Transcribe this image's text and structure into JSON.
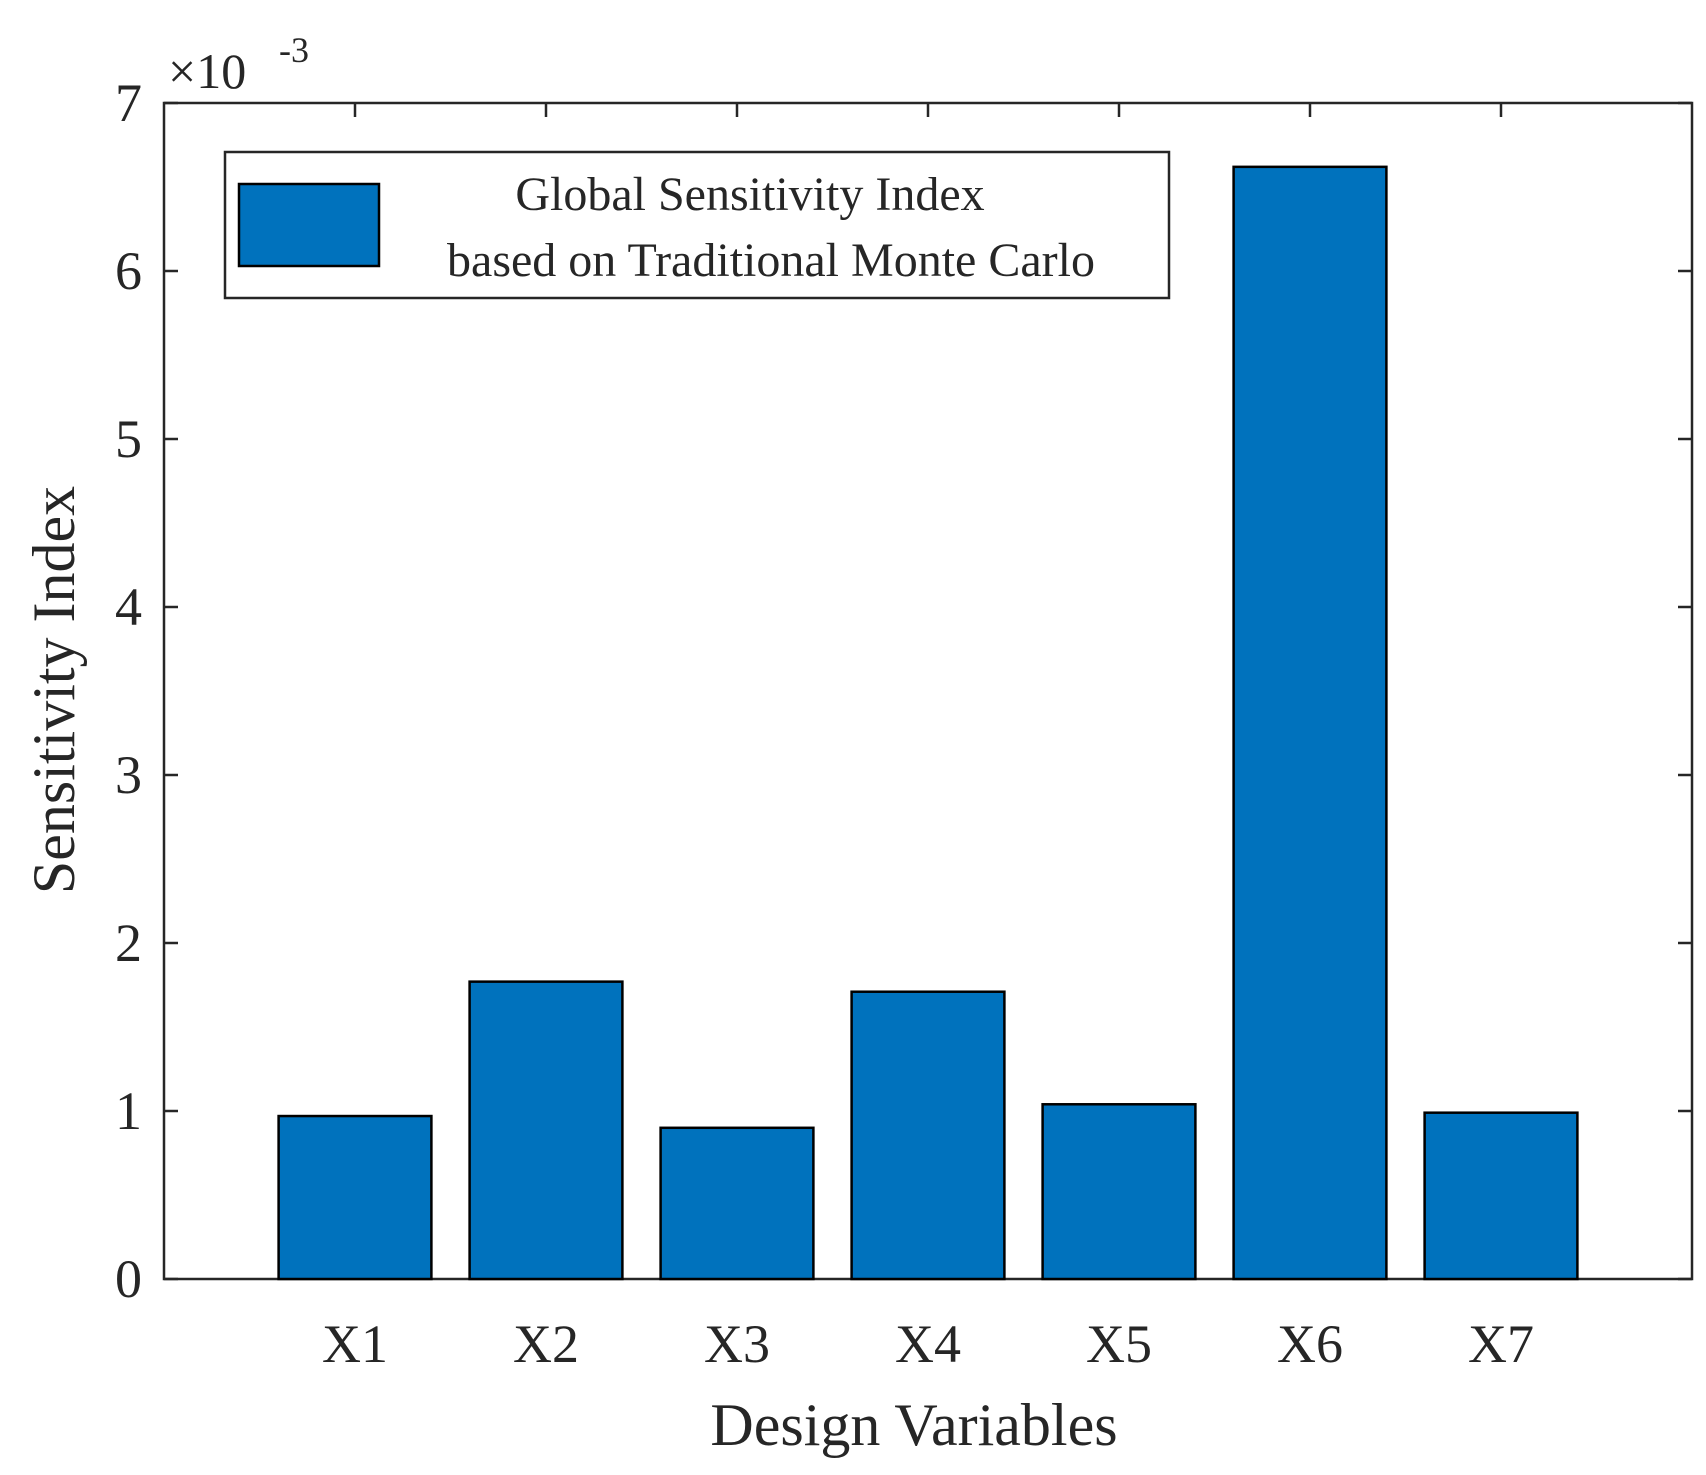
{
  "chart_data": {
    "type": "bar",
    "categories": [
      "X1",
      "X2",
      "X3",
      "X4",
      "X5",
      "X6",
      "X7"
    ],
    "series": [
      {
        "name": "Global Sensitivity Index based on Traditional Monte Carlo",
        "values": [
          0.97,
          1.77,
          0.9,
          1.71,
          1.04,
          6.62,
          0.99
        ]
      }
    ],
    "xlabel": "Design Variables",
    "ylabel": "Sensitivity Index",
    "ylim": [
      0,
      7
    ],
    "yticks": [
      "0",
      "1",
      "2",
      "3",
      "4",
      "5",
      "6",
      "7"
    ],
    "exponent_base": "×10",
    "exponent_power": "-3",
    "legend": {
      "line1": "Global Sensitivity Index",
      "line2": "based on Traditional Monte Carlo",
      "placement": "top-left"
    },
    "bar_color": "#0072BD",
    "grid": false
  }
}
